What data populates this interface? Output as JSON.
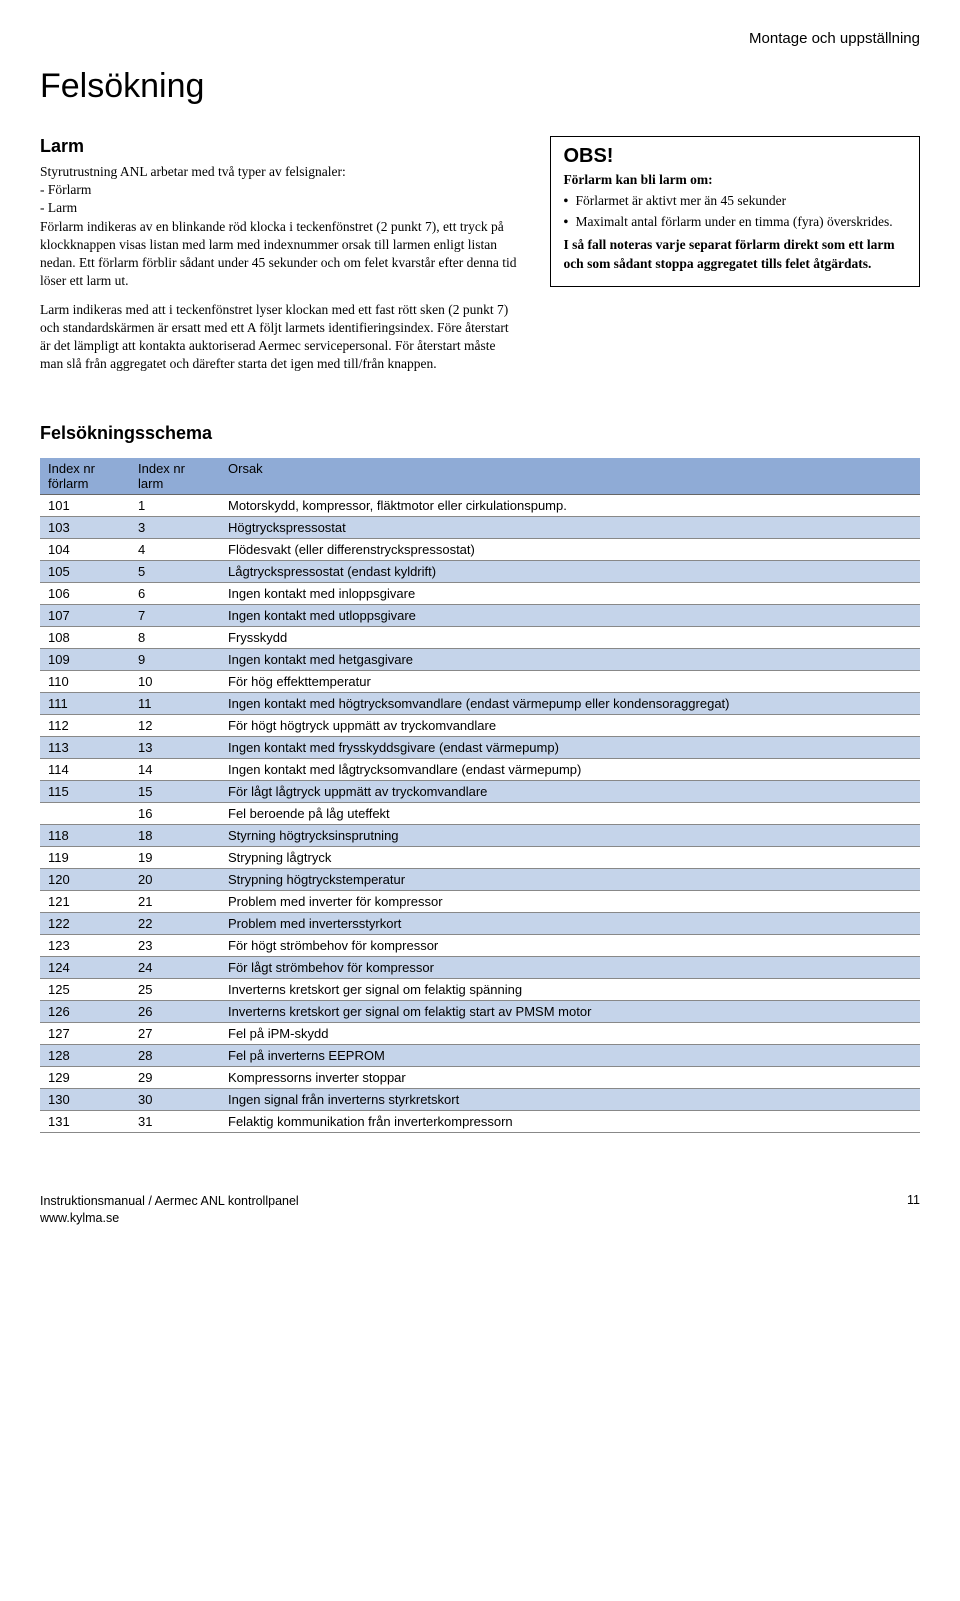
{
  "header": {
    "section_label": "Montage och uppställning"
  },
  "title": "Felsökning",
  "larm": {
    "heading": "Larm",
    "p1": "Styrutrustning ANL arbetar med två typer av felsignaler:\n- Förlarm\n- Larm\nFörlarm indikeras av en blinkande röd klocka i teckenfönstret (2 punkt 7), ett tryck på klockknappen visas listan med larm med indexnummer orsak till larmen enligt listan nedan. Ett förlarm förblir sådant under 45 sekunder och om felet kvarstår efter denna tid löser ett larm ut.",
    "p2": "Larm indikeras med att i teckenfönstret lyser klockan med ett fast rött sken (2 punkt 7) och standardskärmen är ersatt med ett A följt larmets identifieringsindex. Före återstart är det lämpligt att kontakta auktoriserad Aermec servicepersonal. För återstart måste man slå från aggregatet och därefter starta det igen med till/från knappen."
  },
  "obs": {
    "title": "OBS!",
    "sub": "Förlarm kan bli larm om:",
    "items": [
      "Förlarmet är aktivt mer än 45 sekunder",
      "Maximalt antal förlarm under en timma (fyra) överskrides."
    ],
    "note": "I så fall noteras varje separat förlarm direkt som ett larm och som sådant stoppa aggregatet tills felet åtgärdats."
  },
  "schema": {
    "heading": "Felsökningsschema",
    "columns": {
      "c1a": "Index nr",
      "c1b": "förlarm",
      "c2a": "Index nr",
      "c2b": "larm",
      "c3": "Orsak"
    },
    "rows": [
      {
        "forlarm": "101",
        "larm": "1",
        "orsak": "Motorskydd, kompressor, fläktmotor eller cirkulationspump."
      },
      {
        "forlarm": "103",
        "larm": "3",
        "orsak": "Högtryckspressostat"
      },
      {
        "forlarm": "104",
        "larm": "4",
        "orsak": "Flödesvakt (eller differenstryckspressostat)"
      },
      {
        "forlarm": "105",
        "larm": "5",
        "orsak": "Lågtryckspressostat (endast kyldrift)"
      },
      {
        "forlarm": "106",
        "larm": "6",
        "orsak": "Ingen kontakt med inloppsgivare"
      },
      {
        "forlarm": "107",
        "larm": "7",
        "orsak": "Ingen kontakt med utloppsgivare"
      },
      {
        "forlarm": "108",
        "larm": "8",
        "orsak": "Frysskydd"
      },
      {
        "forlarm": "109",
        "larm": "9",
        "orsak": "Ingen kontakt med hetgasgivare"
      },
      {
        "forlarm": "110",
        "larm": "10",
        "orsak": "För hög effekttemperatur"
      },
      {
        "forlarm": "111",
        "larm": "11",
        "orsak": "Ingen kontakt med högtrycksomvandlare (endast värmepump eller kondensoraggregat)"
      },
      {
        "forlarm": "112",
        "larm": "12",
        "orsak": "För högt högtryck uppmätt av tryckomvandlare"
      },
      {
        "forlarm": "113",
        "larm": "13",
        "orsak": "Ingen kontakt med frysskyddsgivare (endast värmepump)"
      },
      {
        "forlarm": "114",
        "larm": "14",
        "orsak": "Ingen kontakt med lågtrycksomvandlare (endast värmepump)"
      },
      {
        "forlarm": "115",
        "larm": "15",
        "orsak": "För lågt lågtryck uppmätt av tryckomvandlare"
      },
      {
        "forlarm": "",
        "larm": "16",
        "orsak": "Fel beroende på låg uteffekt"
      },
      {
        "forlarm": "118",
        "larm": "18",
        "orsak": "Styrning högtrycksinsprutning"
      },
      {
        "forlarm": "119",
        "larm": "19",
        "orsak": "Strypning lågtryck"
      },
      {
        "forlarm": "120",
        "larm": "20",
        "orsak": "Strypning högtryckstemperatur"
      },
      {
        "forlarm": "121",
        "larm": "21",
        "orsak": "Problem med inverter för kompressor"
      },
      {
        "forlarm": "122",
        "larm": "22",
        "orsak": "Problem med invertersstyrkort"
      },
      {
        "forlarm": "123",
        "larm": "23",
        "orsak": "För högt strömbehov för kompressor"
      },
      {
        "forlarm": "124",
        "larm": "24",
        "orsak": "För lågt strömbehov för kompressor"
      },
      {
        "forlarm": "125",
        "larm": "25",
        "orsak": "Inverterns kretskort ger signal om felaktig spänning"
      },
      {
        "forlarm": "126",
        "larm": "26",
        "orsak": "Inverterns kretskort ger signal om felaktig start av PMSM motor"
      },
      {
        "forlarm": "127",
        "larm": "27",
        "orsak": "Fel på iPM-skydd"
      },
      {
        "forlarm": "128",
        "larm": "28",
        "orsak": "Fel på inverterns EEPROM"
      },
      {
        "forlarm": "129",
        "larm": "29",
        "orsak": "Kompressorns inverter stoppar"
      },
      {
        "forlarm": "130",
        "larm": "30",
        "orsak": "Ingen signal från inverterns styrkretskort"
      },
      {
        "forlarm": "131",
        "larm": "31",
        "orsak": "Felaktig kommunikation från inverterkompressorn"
      }
    ],
    "striped_color": "#c5d4ea",
    "header_color": "#8fabd6"
  },
  "footer": {
    "line1": "Instruktionsmanual / Aermec ANL kontrollpanel",
    "line2": "www.kylma.se",
    "page": "11"
  }
}
